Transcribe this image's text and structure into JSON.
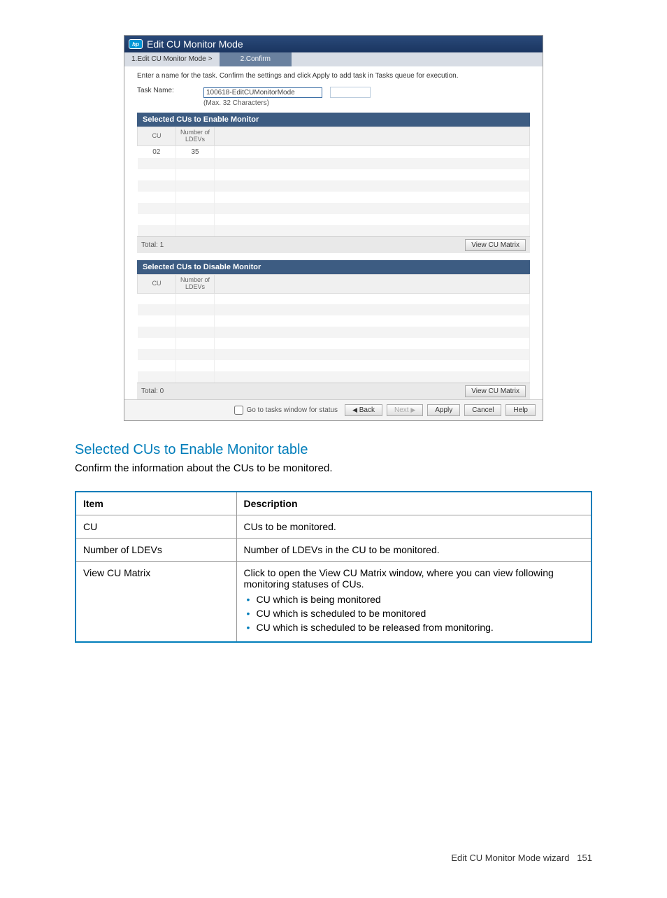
{
  "dialog": {
    "title": "Edit CU Monitor Mode",
    "step1": "1.Edit CU Monitor Mode",
    "step2": "2.Confirm",
    "instruction": "Enter a name for the task. Confirm the settings and click Apply to add task in Tasks queue for execution.",
    "task_label": "Task Name:",
    "task_value": "100618-EditCUMonitorMode",
    "task_hint": "(Max. 32 Characters)",
    "enable_section": "Selected CUs to Enable Monitor",
    "disable_section": "Selected CUs to Disable Monitor",
    "col_cu": "CU",
    "col_num": "Number of LDEVs",
    "enable_row_cu": "02",
    "enable_row_num": "35",
    "enable_total": "Total: 1",
    "disable_total": "Total: 0",
    "view_matrix_btn": "View CU Matrix",
    "goto_tasks": "Go to tasks window for status",
    "back_btn": "Back",
    "next_btn": "Next",
    "apply_btn": "Apply",
    "cancel_btn": "Cancel",
    "help_btn": "Help"
  },
  "doc": {
    "heading": "Selected CUs to Enable Monitor table",
    "intro": "Confirm the information about the CUs to be monitored.",
    "table": {
      "head_item": "Item",
      "head_desc": "Description",
      "row1_item": "CU",
      "row1_desc": "CUs to be monitored.",
      "row2_item": "Number of LDEVs",
      "row2_desc": "Number of LDEVs in the CU to be monitored.",
      "row3_item": "View CU Matrix",
      "row3_desc": "Click to open the View CU Matrix window, where you can view following monitoring statuses of CUs.",
      "row3_b1": "CU which is being monitored",
      "row3_b2": "CU which is scheduled to be monitored",
      "row3_b3": "CU which is scheduled to be released from monitoring."
    }
  },
  "footer": {
    "text": "Edit CU Monitor Mode wizard",
    "page": "151"
  }
}
